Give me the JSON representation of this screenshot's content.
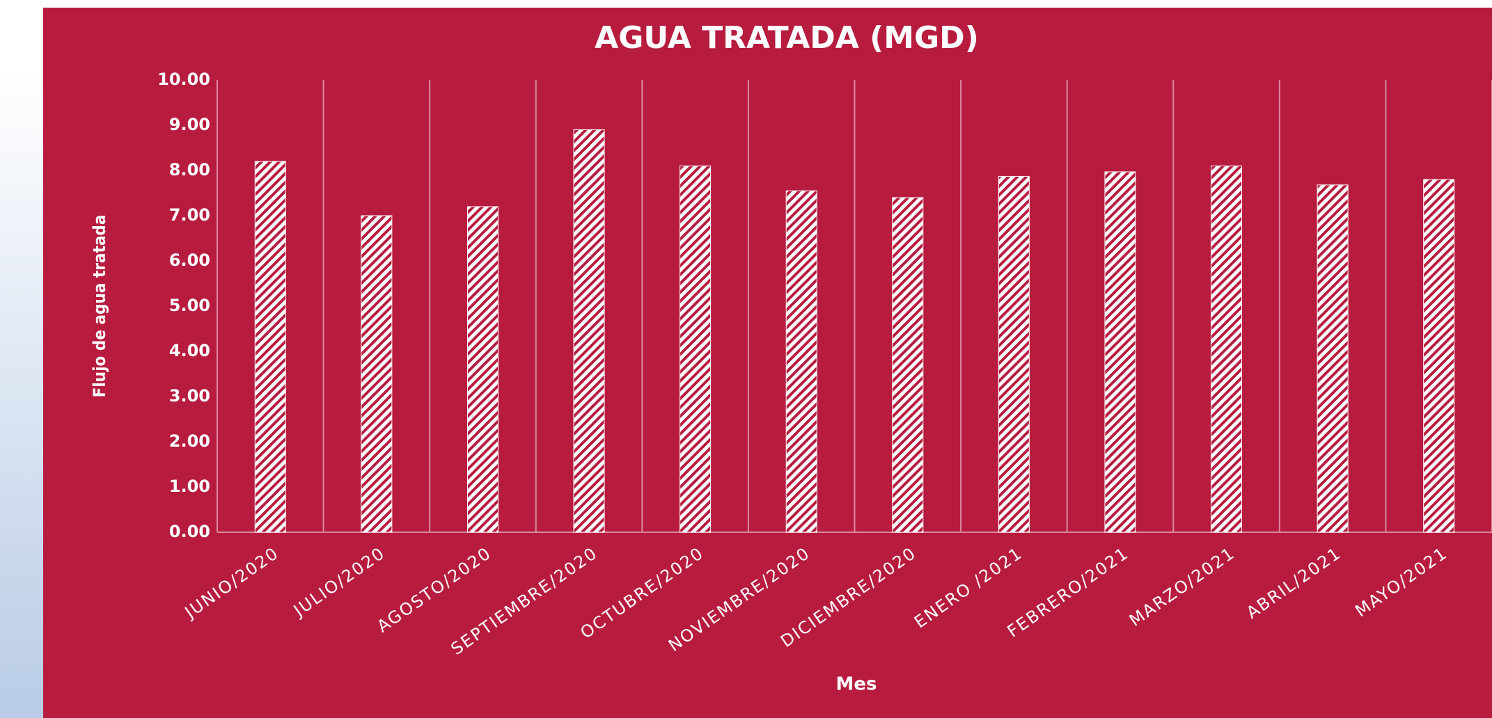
{
  "chart_data": {
    "type": "bar",
    "title": "AGUA TRATADA (MGD)",
    "x_label": "Mes",
    "y_label": "Flujo de agua tratada",
    "categories": [
      "JUNIO/2020",
      "JULIO/2020",
      "AGOSTO/2020",
      "SEPTIEMBRE/2020",
      "OCTUBRE/2020",
      "NOVIEMBRE/2020",
      "DICIEMBRE/2020",
      "ENERO /2021",
      "FEBRERO/2021",
      "MARZO/2021",
      "ABRIL/2021",
      "MAYO/2021"
    ],
    "values": [
      8.2,
      7.0,
      7.2,
      8.9,
      8.1,
      7.55,
      7.4,
      7.87,
      7.97,
      8.1,
      7.68,
      7.8
    ],
    "color": "#ffffff",
    "background": "#b71c3f",
    "ylim": [
      0,
      10
    ],
    "yticks": [
      {
        "value": 0,
        "label": "0.00"
      },
      {
        "value": 1,
        "label": "1.00"
      },
      {
        "value": 2,
        "label": "2.00"
      },
      {
        "value": 3,
        "label": "3.00"
      },
      {
        "value": 4,
        "label": "4.00"
      },
      {
        "value": 5,
        "label": "5.00"
      },
      {
        "value": 6,
        "label": "6.00"
      },
      {
        "value": 7,
        "label": "7.00"
      },
      {
        "value": 8,
        "label": "8.00"
      },
      {
        "value": 9,
        "label": "9.00"
      },
      {
        "value": 10,
        "label": "10.00"
      }
    ],
    "grid": true
  }
}
